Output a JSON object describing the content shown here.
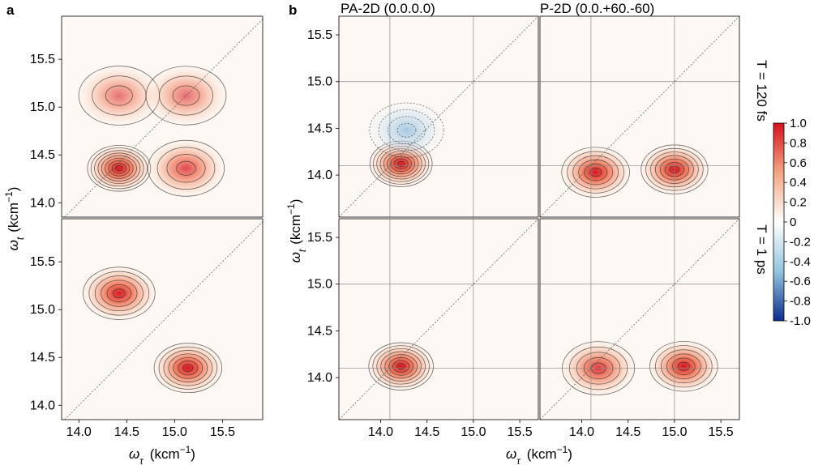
{
  "figure": {
    "panel_a_letter": "a",
    "panel_b_letter": "b",
    "col1_title": "PA-2D (0.0.0.0)",
    "col2_title": "P-2D (0.0.+60.-60)",
    "row1_label": "T = 120 fs",
    "row2_label": "T = 1 ps"
  },
  "axes": {
    "y_label": "ωt (kcm−1)",
    "y_label_symbol": "ω",
    "y_label_sub": "t",
    "y_label_unit": "(kcm",
    "y_label_exp": "−1",
    "y_label_close": ")",
    "x_label": "ωτ (kcm−1)",
    "x_label_symbol": "ω",
    "x_label_sub": "τ",
    "x_label_unit": "(kcm",
    "x_label_exp": "−1",
    "x_label_close": ")"
  },
  "colorbar": {
    "ticks": [
      "1.0",
      "0.8",
      "0.6",
      "0.4",
      "0.2",
      "0",
      "-0.2",
      "-0.4",
      "-0.6",
      "-0.8",
      "-1.0"
    ],
    "range": [
      -1.0,
      1.0
    ],
    "colors": {
      "neg": "#0b2c8f",
      "mid": "#ffffff",
      "pos": "#d6121f"
    }
  },
  "chart_data": [
    {
      "type": "heatmap",
      "panel": "a-top",
      "x_ticks": [
        "14.0",
        "14.5",
        "15.0",
        "15.5"
      ],
      "y_ticks": [
        "14.0",
        "14.5",
        "15.0",
        "15.5"
      ],
      "xlim": [
        13.82,
        15.92
      ],
      "ylim": [
        13.85,
        15.95
      ],
      "peaks": [
        {
          "x": 14.42,
          "y": 14.36,
          "amp": 1.0
        },
        {
          "x": 15.12,
          "y": 14.36,
          "amp": 0.42
        },
        {
          "x": 14.42,
          "y": 15.12,
          "amp": 0.24
        },
        {
          "x": 15.12,
          "y": 15.12,
          "amp": 0.26
        }
      ]
    },
    {
      "type": "heatmap",
      "panel": "a-bottom",
      "x_ticks": [
        "14.0",
        "14.5",
        "15.0",
        "15.5"
      ],
      "y_ticks": [
        "14.0",
        "14.5",
        "15.0",
        "15.5"
      ],
      "xlim": [
        13.82,
        15.92
      ],
      "ylim": [
        13.85,
        15.95
      ],
      "peaks": [
        {
          "x": 14.42,
          "y": 15.17,
          "amp": 0.62
        },
        {
          "x": 15.14,
          "y": 14.39,
          "amp": 0.8
        }
      ]
    },
    {
      "type": "heatmap",
      "panel": "b-PA-2D-120fs",
      "x_ticks": [
        "14.0",
        "14.5",
        "15.0",
        "15.5"
      ],
      "y_ticks": [
        "14.0",
        "14.5",
        "15.0",
        "15.5"
      ],
      "xlim": [
        13.55,
        15.7
      ],
      "ylim": [
        13.55,
        15.7
      ],
      "peaks": [
        {
          "x": 14.22,
          "y": 14.12,
          "amp": 0.95
        },
        {
          "x": 14.28,
          "y": 14.48,
          "amp": -0.42
        }
      ]
    },
    {
      "type": "heatmap",
      "panel": "b-P-2D-120fs",
      "x_ticks": [
        "14.0",
        "14.5",
        "15.0",
        "15.5"
      ],
      "xlim": [
        13.55,
        15.7
      ],
      "ylim": [
        13.55,
        15.7
      ],
      "peaks": [
        {
          "x": 14.15,
          "y": 14.03,
          "amp": 0.7
        },
        {
          "x": 15.0,
          "y": 14.06,
          "amp": 0.75
        }
      ]
    },
    {
      "type": "heatmap",
      "panel": "b-PA-2D-1ps",
      "x_ticks": [
        "14.0",
        "14.5",
        "15.0",
        "15.5"
      ],
      "y_ticks": [
        "14.0",
        "14.5",
        "15.0",
        "15.5"
      ],
      "xlim": [
        13.55,
        15.7
      ],
      "ylim": [
        13.55,
        15.7
      ],
      "peaks": [
        {
          "x": 14.22,
          "y": 14.12,
          "amp": 0.85
        }
      ]
    },
    {
      "type": "heatmap",
      "panel": "b-P-2D-1ps",
      "x_ticks": [
        "14.0",
        "14.5",
        "15.0",
        "15.5"
      ],
      "xlim": [
        13.55,
        15.7
      ],
      "ylim": [
        13.55,
        15.7
      ],
      "peaks": [
        {
          "x": 14.18,
          "y": 14.1,
          "amp": 0.5
        },
        {
          "x": 15.1,
          "y": 14.12,
          "amp": 0.7
        }
      ]
    }
  ]
}
